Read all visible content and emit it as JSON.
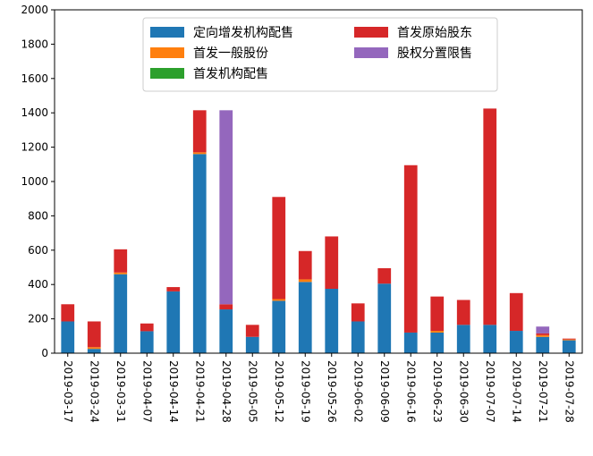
{
  "chart_data": {
    "type": "bar",
    "stacked": true,
    "categories": [
      "2019-03-17",
      "2019-03-24",
      "2019-03-31",
      "2019-04-07",
      "2019-04-14",
      "2019-04-21",
      "2019-04-28",
      "2019-05-05",
      "2019-05-12",
      "2019-05-19",
      "2019-05-26",
      "2019-06-02",
      "2019-06-09",
      "2019-06-16",
      "2019-06-23",
      "2019-06-30",
      "2019-07-07",
      "2019-07-14",
      "2019-07-21",
      "2019-07-28"
    ],
    "series": [
      {
        "name": "定向增发机构配售",
        "color": "#1f77b4",
        "values": [
          185,
          25,
          460,
          128,
          360,
          1160,
          255,
          95,
          305,
          415,
          375,
          185,
          405,
          120,
          120,
          165,
          165,
          130,
          95,
          75
        ]
      },
      {
        "name": "首发一般股份",
        "color": "#ff7f0e",
        "values": [
          0,
          10,
          10,
          0,
          0,
          10,
          0,
          0,
          10,
          15,
          0,
          0,
          0,
          0,
          10,
          0,
          0,
          0,
          10,
          5
        ]
      },
      {
        "name": "首发机构配售",
        "color": "#2ca02c",
        "values": [
          0,
          0,
          0,
          0,
          0,
          0,
          0,
          0,
          0,
          0,
          0,
          0,
          0,
          0,
          0,
          0,
          0,
          0,
          0,
          0
        ]
      },
      {
        "name": "首发原始股东",
        "color": "#d62728",
        "values": [
          100,
          150,
          135,
          45,
          25,
          245,
          30,
          70,
          595,
          165,
          305,
          105,
          90,
          975,
          200,
          145,
          1260,
          220,
          10,
          5
        ]
      },
      {
        "name": "股权分置限售",
        "color": "#9467bd",
        "values": [
          0,
          0,
          0,
          0,
          0,
          0,
          1130,
          0,
          0,
          0,
          0,
          0,
          0,
          0,
          0,
          0,
          0,
          0,
          40,
          0
        ]
      }
    ],
    "yticks": [
      "0",
      "200",
      "400",
      "600",
      "800",
      "1000",
      "1200",
      "1400",
      "1600",
      "1800",
      "2000"
    ],
    "ylim": [
      0,
      2000
    ],
    "legend_order": [
      0,
      3,
      1,
      4,
      2
    ],
    "legend_placement": "top-center",
    "grid": false,
    "title": "",
    "xlabel": "",
    "ylabel": ""
  }
}
